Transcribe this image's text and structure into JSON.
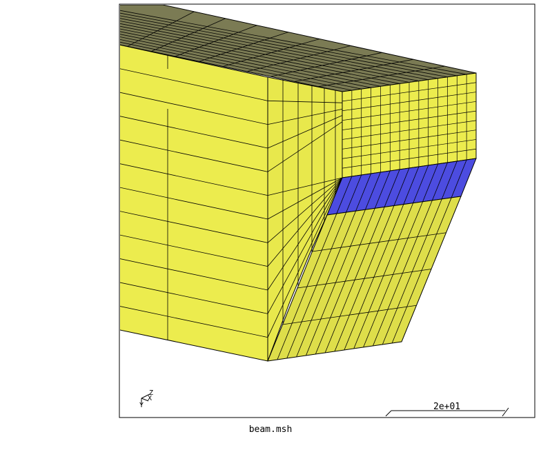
{
  "window": {
    "file_label": "beam.msh"
  },
  "scale_bar": {
    "label": "2e+01"
  },
  "axes": {
    "labels": [
      "Z",
      "X",
      "Y"
    ]
  },
  "colors": {
    "background": "#ffffff",
    "frame": "#000000",
    "face_top": "#7b7b54",
    "face_yellow": "#ecec4e",
    "face_yellow_shaded": "#dede4a",
    "face_blue": "#4c4ce0",
    "edge": "#000000"
  }
}
